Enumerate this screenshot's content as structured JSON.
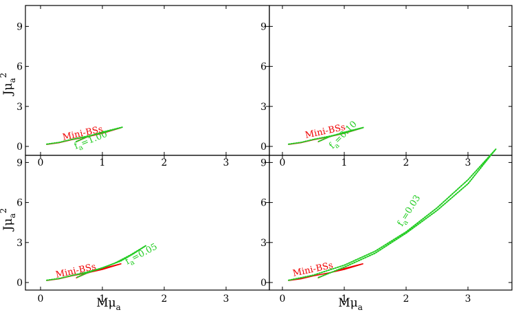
{
  "chart_data": [
    {
      "type": "line",
      "panel": "top-left",
      "xlabel": "",
      "ylabel": "Jμ_a^2",
      "xlim": [
        -0.2,
        3.8
      ],
      "ylim": [
        -0.4,
        10.5
      ],
      "xticks": [
        "0",
        "1",
        "2",
        "3"
      ],
      "yticks": [
        "0",
        "3",
        "6",
        "9"
      ],
      "annotations": [
        {
          "text": "Mini-BSs",
          "color": "#ee0000"
        },
        {
          "text": "f",
          "sub": "a",
          "tail": "=1.00",
          "color": "#22cc22"
        }
      ],
      "series": [
        {
          "color": "#ee0000",
          "style": "solid",
          "x": [
            0.1,
            0.3,
            0.5,
            0.75,
            1.0,
            1.3,
            1.0,
            0.75,
            0.58
          ],
          "y": [
            0.15,
            0.28,
            0.5,
            0.72,
            0.98,
            1.4,
            1.05,
            0.7,
            0.35
          ]
        },
        {
          "color": "#22cc22",
          "style": "dotted",
          "x": [
            0.1,
            0.3,
            0.5,
            0.75,
            1.0,
            1.32,
            1.0,
            0.75,
            0.58
          ],
          "y": [
            0.17,
            0.3,
            0.52,
            0.76,
            1.02,
            1.44,
            1.07,
            0.72,
            0.37
          ]
        }
      ]
    },
    {
      "type": "line",
      "panel": "top-right",
      "xlabel": "",
      "ylabel": "",
      "xlim": [
        -0.2,
        3.8
      ],
      "ylim": [
        -0.4,
        10.5
      ],
      "xticks": [
        "0",
        "1",
        "2",
        "3"
      ],
      "yticks": [
        "0",
        "3",
        "6",
        "9"
      ],
      "annotations": [
        {
          "text": "Mini-BSs",
          "color": "#ee0000"
        },
        {
          "text": "f",
          "sub": "a",
          "tail": "=0.10",
          "color": "#22cc22"
        }
      ],
      "series": [
        {
          "color": "#ee0000",
          "style": "solid",
          "x": [
            0.1,
            0.3,
            0.5,
            0.75,
            1.0,
            1.3,
            1.0,
            0.75,
            0.58
          ],
          "y": [
            0.15,
            0.28,
            0.5,
            0.72,
            0.98,
            1.4,
            1.05,
            0.7,
            0.35
          ]
        },
        {
          "color": "#22cc22",
          "style": "dotted",
          "x": [
            0.1,
            0.3,
            0.5,
            0.75,
            1.0,
            1.31,
            1.0,
            0.75,
            0.58
          ],
          "y": [
            0.17,
            0.3,
            0.52,
            0.75,
            1.0,
            1.42,
            1.06,
            0.71,
            0.36
          ]
        }
      ]
    },
    {
      "type": "line",
      "panel": "bottom-left",
      "xlabel": "Mμ_a",
      "ylabel": "Jμ_a^2",
      "xlim": [
        -0.2,
        3.8
      ],
      "ylim": [
        -0.4,
        10.5
      ],
      "xticks": [
        "0",
        "1",
        "2",
        "3"
      ],
      "yticks": [
        "0",
        "3",
        "6",
        "9"
      ],
      "annotations": [
        {
          "text": "Mini-BSs",
          "color": "#ee0000"
        },
        {
          "text": "f",
          "sub": "a",
          "tail": "=0.05",
          "color": "#22cc22"
        }
      ],
      "series": [
        {
          "color": "#ee0000",
          "style": "solid",
          "x": [
            0.1,
            0.3,
            0.5,
            0.75,
            1.0,
            1.3,
            1.0,
            0.75,
            0.58
          ],
          "y": [
            0.15,
            0.28,
            0.5,
            0.72,
            0.98,
            1.4,
            1.05,
            0.7,
            0.35
          ]
        },
        {
          "color": "#22cc22",
          "style": "dotted",
          "x": [
            0.1,
            0.3,
            0.5,
            0.75,
            1.0,
            1.3,
            1.5,
            1.7,
            1.45,
            1.2,
            1.0,
            0.75,
            0.58
          ],
          "y": [
            0.17,
            0.3,
            0.52,
            0.78,
            1.1,
            1.62,
            2.15,
            2.75,
            2.05,
            1.45,
            1.1,
            0.72,
            0.37
          ]
        }
      ]
    },
    {
      "type": "line",
      "panel": "bottom-right",
      "xlabel": "Mμ_a",
      "ylabel": "",
      "xlim": [
        -0.2,
        3.8
      ],
      "ylim": [
        -0.4,
        10.5
      ],
      "xticks": [
        "0",
        "1",
        "2",
        "3"
      ],
      "yticks": [
        "0",
        "3",
        "6",
        "9"
      ],
      "annotations": [
        {
          "text": "Mini-BSs",
          "color": "#ee0000"
        },
        {
          "text": "f",
          "sub": "a",
          "tail": "=0.03",
          "color": "#22cc22"
        }
      ],
      "series": [
        {
          "color": "#ee0000",
          "style": "solid",
          "x": [
            0.1,
            0.3,
            0.5,
            0.75,
            1.0,
            1.3,
            1.0,
            0.75,
            0.58
          ],
          "y": [
            0.15,
            0.28,
            0.5,
            0.72,
            0.98,
            1.4,
            1.05,
            0.7,
            0.35
          ]
        },
        {
          "color": "#22cc22",
          "style": "dotted",
          "x": [
            0.1,
            0.5,
            1.0,
            1.5,
            2.0,
            2.5,
            3.0,
            3.45,
            3.0,
            2.5,
            2.0,
            1.5,
            1.0,
            0.58
          ],
          "y": [
            0.17,
            0.55,
            1.3,
            2.35,
            3.8,
            5.6,
            7.7,
            10.0,
            7.4,
            5.4,
            3.7,
            2.2,
            1.15,
            0.37
          ]
        }
      ]
    }
  ]
}
